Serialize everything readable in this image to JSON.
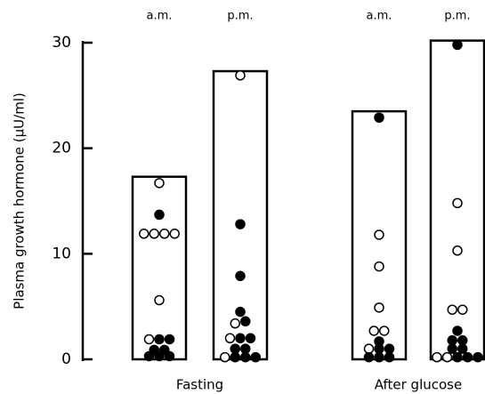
{
  "chart_data": {
    "type": "bar",
    "y_label": "Plasma growth hormone (μU/ml)",
    "categories": [
      "a.m.",
      "p.m.",
      "a.m.",
      "p.m."
    ],
    "groups": [
      "Fasting",
      "After glucose"
    ],
    "values": [
      17.3,
      27.3,
      23.5,
      30.2
    ],
    "series": [
      {
        "color": "#ffffff",
        "values": [
          [
            16.7,
            11.9,
            11.9,
            11.9,
            11.9,
            5.6,
            1.9
          ],
          [
            26.9,
            3.4,
            2.0,
            0.2
          ],
          [
            11.8,
            8.8,
            4.9,
            2.7,
            2.7,
            1.0
          ],
          [
            14.8,
            10.3,
            4.7,
            4.7,
            0.2,
            0.2
          ]
        ]
      },
      {
        "color": "#000000",
        "values": [
          [
            13.7,
            1.9,
            1.9,
            0.9,
            0.9,
            0.3,
            0.3,
            0.3
          ],
          [
            12.8,
            7.9,
            4.5,
            3.6,
            2.0,
            2.0,
            1.0,
            1.0,
            0.2,
            0.2,
            0.2
          ],
          [
            22.9,
            1.7,
            1.0,
            1.0,
            0.2,
            0.2,
            0.2
          ],
          [
            29.8,
            2.7,
            1.8,
            1.8,
            1.0,
            1.0,
            0.2,
            0.2,
            0.2
          ]
        ]
      }
    ],
    "ylim": [
      0,
      30
    ],
    "yticks": [
      0,
      10,
      20,
      30
    ]
  }
}
